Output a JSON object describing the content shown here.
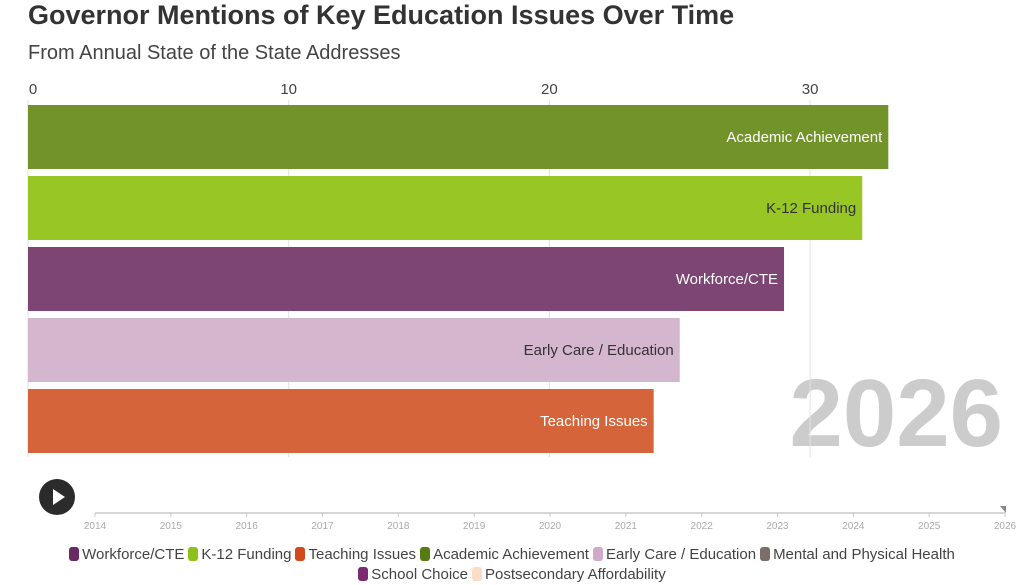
{
  "chart_data": {
    "type": "bar",
    "title": "Governor Mentions of Key Education Issues Over Time",
    "subtitle": "From Annual State of the State Addresses",
    "orientation": "horizontal",
    "current_year": "2026",
    "categories": [
      "Academic Achievement",
      "K-12 Funding",
      "Workforce/CTE",
      "Early Care / Education",
      "Teaching Issues"
    ],
    "values": [
      33,
      32,
      29,
      25,
      24
    ],
    "colors": [
      "#72922a",
      "#97c625",
      "#7d4573",
      "#d4b6cf",
      "#d6643a"
    ],
    "label_colors": [
      "#ffffff",
      "#333333",
      "#ffffff",
      "#333333",
      "#ffffff"
    ],
    "xlim": [
      0,
      35
    ],
    "x_ticks": [
      0,
      10,
      20,
      30
    ],
    "grid": true,
    "timeline_years": [
      "2014",
      "2015",
      "2016",
      "2017",
      "2018",
      "2019",
      "2020",
      "2021",
      "2022",
      "2023",
      "2024",
      "2025",
      "2026"
    ],
    "legend_position": "bottom",
    "legend": [
      {
        "name": "Workforce/CTE",
        "color": "#6b2a63"
      },
      {
        "name": "K-12 Funding",
        "color": "#8cc21b"
      },
      {
        "name": "Teaching Issues",
        "color": "#d04a1c"
      },
      {
        "name": "Academic Achievement",
        "color": "#567d14"
      },
      {
        "name": "Early Care / Education",
        "color": "#d0a9cb"
      },
      {
        "name": "Mental and Physical Health",
        "color": "#7a6f6a"
      },
      {
        "name": "School Choice",
        "color": "#7c2a72"
      },
      {
        "name": "Postsecondary Affordability",
        "color": "#fcdcc6"
      }
    ]
  },
  "controls": {
    "play_icon": "play-icon"
  }
}
